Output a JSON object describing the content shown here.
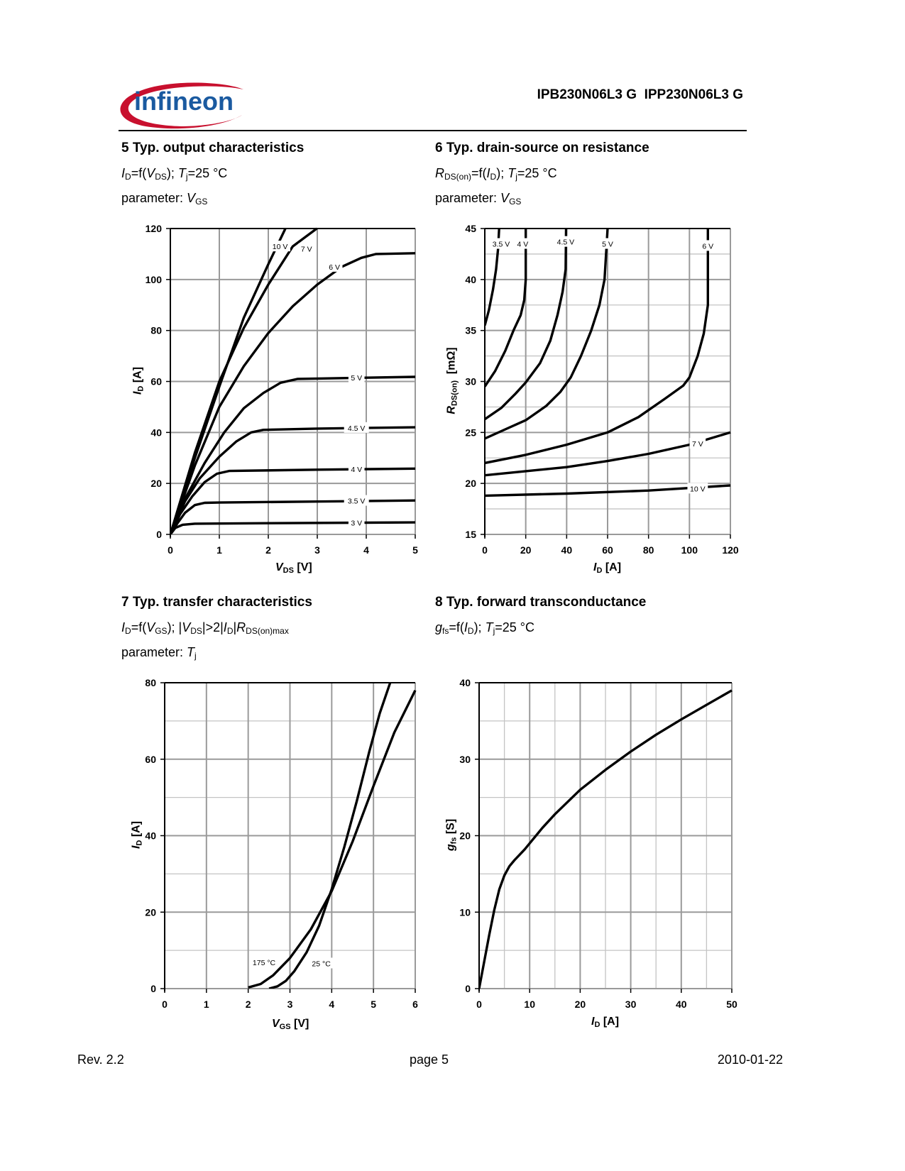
{
  "header": {
    "logo_text": "infineon",
    "part_numbers": "IPB230N06L3 G  IPP230N06L3 G"
  },
  "footer": {
    "revision": "Rev. 2.2",
    "page": "page 5",
    "date": "2010-01-22"
  },
  "colors": {
    "logo_blue": "#1a5aa0",
    "logo_red": "#c8102e",
    "grid": "#9a9a9a",
    "grid_minor": "#c4c4c4",
    "curve": "#000000"
  },
  "sections": [
    {
      "title": "5 Typ. output characteristics",
      "f": {
        "a": "I",
        "as": "D",
        "b": "=f(",
        "c": "V",
        "cs": "DS",
        "d": "); ",
        "e": "T",
        "es": "j",
        "g": "=25 °C"
      },
      "param": {
        "label": "parameter: ",
        "v": "V",
        "vs": "GS"
      }
    },
    {
      "title": "6 Typ. drain-source on resistance",
      "f": {
        "a": "R",
        "as": "DS(on)",
        "b": "=f(",
        "c": "I",
        "cs": "D",
        "d": "); ",
        "e": "T",
        "es": "j",
        "g": "=25 °C"
      },
      "param": {
        "label": "parameter: ",
        "v": "V",
        "vs": "GS"
      }
    },
    {
      "title": "7 Typ. transfer characteristics",
      "f": {
        "a": "I",
        "as": "D",
        "b": "=f(",
        "c": "V",
        "cs": "GS",
        "d": "); |",
        "e": "V",
        "es": "DS",
        "g": "|>2|",
        "h": "I",
        "hs": "D",
        "k": "|",
        "m": "R",
        "ms": "DS(on)max"
      },
      "param": {
        "label": "parameter: ",
        "v": "T",
        "vs": "j"
      }
    },
    {
      "title": "8 Typ. forward transconductance",
      "f": {
        "a": "g",
        "as": "fs",
        "b": "=f(",
        "c": "I",
        "cs": "D",
        "d": "); ",
        "e": "T",
        "es": "j",
        "g": "=25 °C"
      }
    }
  ],
  "chart_data": [
    {
      "type": "line",
      "title": "5 Typ. output characteristics",
      "xlabel": {
        "sym": "V",
        "sub": "DS",
        "unit": " [V]"
      },
      "ylabel": {
        "sym": "I",
        "sub": "D",
        "unit": " [A]"
      },
      "xlim": [
        0,
        5
      ],
      "ylim": [
        0,
        120
      ],
      "grid": true,
      "xticks": [
        "0",
        "1",
        "2",
        "3",
        "4",
        "5"
      ],
      "yticks": [
        "0",
        "20",
        "40",
        "60",
        "80",
        "100",
        "120"
      ],
      "xmajor": 1,
      "ymajor": 20,
      "xminor": null,
      "yminor": null,
      "series": [
        {
          "name": "3 V",
          "label_at": [
            3.8,
            4.6
          ],
          "points": [
            [
              0,
              0
            ],
            [
              0.1,
              2.5
            ],
            [
              0.25,
              3.8
            ],
            [
              0.5,
              4.2
            ],
            [
              2,
              4.4
            ],
            [
              5,
              4.7
            ]
          ]
        },
        {
          "name": "3.5 V",
          "label_at": [
            3.8,
            13.2
          ],
          "points": [
            [
              0,
              0
            ],
            [
              0.15,
              4.5
            ],
            [
              0.3,
              8.5
            ],
            [
              0.5,
              11.5
            ],
            [
              0.7,
              12.4
            ],
            [
              1,
              12.5
            ],
            [
              3,
              12.9
            ],
            [
              5,
              13.3
            ]
          ]
        },
        {
          "name": "4 V",
          "label_at": [
            3.8,
            25.6
          ],
          "points": [
            [
              0,
              0
            ],
            [
              0.2,
              8
            ],
            [
              0.45,
              15
            ],
            [
              0.7,
              20.5
            ],
            [
              0.95,
              23.8
            ],
            [
              1.2,
              24.9
            ],
            [
              3,
              25.4
            ],
            [
              5,
              25.8
            ]
          ]
        },
        {
          "name": "4.5 V",
          "label_at": [
            3.8,
            41.8
          ],
          "points": [
            [
              0,
              0
            ],
            [
              0.3,
              13
            ],
            [
              0.6,
              22
            ],
            [
              1,
              30.5
            ],
            [
              1.35,
              36.5
            ],
            [
              1.65,
              40
            ],
            [
              1.9,
              41
            ],
            [
              3,
              41.5
            ],
            [
              5,
              42
            ]
          ]
        },
        {
          "name": "5 V",
          "label_at": [
            3.8,
            61.5
          ],
          "points": [
            [
              0,
              0
            ],
            [
              0.3,
              14
            ],
            [
              0.7,
              28
            ],
            [
              1.1,
              40
            ],
            [
              1.5,
              49.5
            ],
            [
              1.9,
              55.5
            ],
            [
              2.25,
              59.5
            ],
            [
              2.6,
              61
            ],
            [
              3.5,
              61.3
            ],
            [
              5,
              61.8
            ]
          ]
        },
        {
          "name": "6 V",
          "label_at": [
            3.35,
            105
          ],
          "points": [
            [
              0,
              0
            ],
            [
              0.5,
              27
            ],
            [
              1,
              50
            ],
            [
              1.5,
              66
            ],
            [
              2,
              79
            ],
            [
              2.5,
              89.5
            ],
            [
              3,
              98
            ],
            [
              3.5,
              105
            ],
            [
              3.9,
              108.5
            ],
            [
              4.2,
              110
            ],
            [
              5,
              110.3
            ]
          ]
        },
        {
          "name": "7 V",
          "label_at": [
            2.78,
            112
          ],
          "points": [
            [
              0,
              0
            ],
            [
              0.5,
              32
            ],
            [
              1,
              60
            ],
            [
              1.5,
              81
            ],
            [
              2,
              98
            ],
            [
              2.5,
              113
            ],
            [
              2.99,
              120
            ]
          ]
        },
        {
          "name": "10 V",
          "label_at": [
            2.24,
            113
          ],
          "points": [
            [
              0,
              0
            ],
            [
              0.5,
              30
            ],
            [
              1,
              58
            ],
            [
              1.5,
              85
            ],
            [
              2,
              106
            ],
            [
              2.35,
              120
            ]
          ]
        }
      ]
    },
    {
      "type": "line",
      "title": "6 Typ. drain-source on resistance",
      "xlabel": {
        "sym": "I",
        "sub": "D",
        "unit": " [A]"
      },
      "ylabel": {
        "sym": "R",
        "sub": "DS(on)",
        "unit": "  [mΩ]"
      },
      "xlim": [
        0,
        120
      ],
      "ylim": [
        15,
        45
      ],
      "grid": true,
      "xticks": [
        "0",
        "20",
        "40",
        "60",
        "80",
        "100",
        "120"
      ],
      "yticks": [
        "15",
        "20",
        "25",
        "30",
        "35",
        "40",
        "45"
      ],
      "xmajor": 20,
      "ymajor": 5,
      "xminor": null,
      "yminor": 2.5,
      "series": [
        {
          "name": "3.5 V",
          "label_at": [
            8,
            43.5
          ],
          "points": [
            [
              0,
              35.5
            ],
            [
              2,
              37
            ],
            [
              4,
              39
            ],
            [
              5.5,
              41
            ],
            [
              6.5,
              43
            ],
            [
              7,
              45
            ]
          ]
        },
        {
          "name": "4 V",
          "label_at": [
            18.5,
            43.5
          ],
          "points": [
            [
              0,
              29.5
            ],
            [
              5,
              31
            ],
            [
              10,
              33
            ],
            [
              14,
              35
            ],
            [
              17.5,
              36.5
            ],
            [
              19.3,
              38
            ],
            [
              20,
              40
            ],
            [
              20,
              45
            ]
          ]
        },
        {
          "name": "4.5 V",
          "label_at": [
            39.5,
            43.7
          ],
          "points": [
            [
              0,
              26.3
            ],
            [
              8,
              27.4
            ],
            [
              15,
              28.8
            ],
            [
              20,
              29.9
            ],
            [
              27,
              31.8
            ],
            [
              32,
              34
            ],
            [
              35.5,
              36.5
            ],
            [
              38,
              38.8
            ],
            [
              39.5,
              41
            ],
            [
              39.7,
              45
            ]
          ]
        },
        {
          "name": "5 V",
          "label_at": [
            60,
            43.5
          ],
          "points": [
            [
              0,
              24.4
            ],
            [
              10,
              25.3
            ],
            [
              20,
              26.2
            ],
            [
              30,
              27.6
            ],
            [
              37,
              29
            ],
            [
              42,
              30.4
            ],
            [
              47,
              32.5
            ],
            [
              52,
              35
            ],
            [
              56,
              37.5
            ],
            [
              58.5,
              40
            ],
            [
              60,
              45
            ]
          ]
        },
        {
          "name": "6 V",
          "label_at": [
            109,
            43.3
          ],
          "points": [
            [
              0,
              22
            ],
            [
              20,
              22.8
            ],
            [
              40,
              23.8
            ],
            [
              60,
              25
            ],
            [
              75,
              26.5
            ],
            [
              88,
              28.3
            ],
            [
              97,
              29.6
            ],
            [
              100,
              30.4
            ],
            [
              104,
              32.5
            ],
            [
              107,
              34.7
            ],
            [
              109,
              37.5
            ],
            [
              109,
              40
            ],
            [
              109,
              45
            ]
          ]
        },
        {
          "name": "7 V",
          "label_at": [
            104,
            23.9
          ],
          "points": [
            [
              0,
              20.8
            ],
            [
              20,
              21.2
            ],
            [
              40,
              21.6
            ],
            [
              60,
              22.2
            ],
            [
              80,
              22.9
            ],
            [
              100,
              23.8
            ],
            [
              120,
              25
            ]
          ]
        },
        {
          "name": "10 V",
          "label_at": [
            104,
            19.5
          ],
          "points": [
            [
              0,
              18.8
            ],
            [
              40,
              19
            ],
            [
              80,
              19.3
            ],
            [
              120,
              19.8
            ]
          ]
        }
      ]
    },
    {
      "type": "line",
      "title": "7 Typ. transfer characteristics",
      "xlabel": {
        "sym": "V",
        "sub": "GS",
        "unit": " [V]"
      },
      "ylabel": {
        "sym": "I",
        "sub": "D",
        "unit": " [A]"
      },
      "xlim": [
        0,
        6
      ],
      "ylim": [
        0,
        80
      ],
      "grid": true,
      "xticks": [
        "0",
        "1",
        "2",
        "3",
        "4",
        "5",
        "6"
      ],
      "yticks": [
        "0",
        "20",
        "40",
        "60",
        "80"
      ],
      "xmajor": 1,
      "ymajor": 20,
      "xminor": null,
      "yminor": 10,
      "series": [
        {
          "name": "25 °C",
          "label_at": [
            3.75,
            6.6
          ],
          "points": [
            [
              2.5,
              0
            ],
            [
              2.7,
              0.6
            ],
            [
              2.9,
              2
            ],
            [
              3.1,
              4.5
            ],
            [
              3.4,
              9.5
            ],
            [
              3.7,
              16.5
            ],
            [
              4,
              26
            ],
            [
              4.3,
              37
            ],
            [
              4.6,
              49
            ],
            [
              4.9,
              62
            ],
            [
              5.15,
              72
            ],
            [
              5.4,
              80
            ]
          ]
        },
        {
          "name": "175 °C",
          "label_at": [
            2.38,
            6.9
          ],
          "points": [
            [
              2,
              0.3
            ],
            [
              2.3,
              1.2
            ],
            [
              2.6,
              3.5
            ],
            [
              3,
              8
            ],
            [
              3.5,
              15.5
            ],
            [
              4,
              25.5
            ],
            [
              4.5,
              38.5
            ],
            [
              5,
              53
            ],
            [
              5.5,
              67
            ],
            [
              6,
              78
            ]
          ]
        }
      ]
    },
    {
      "type": "line",
      "title": "8 Typ. forward transconductance",
      "xlabel": {
        "sym": "I",
        "sub": "D",
        "unit": " [A]"
      },
      "ylabel": {
        "sym": "g",
        "sub": "fs",
        "unit": " [S]"
      },
      "xlim": [
        0,
        50
      ],
      "ylim": [
        0,
        40
      ],
      "grid": true,
      "xticks": [
        "0",
        "10",
        "20",
        "30",
        "40",
        "50"
      ],
      "yticks": [
        "0",
        "10",
        "20",
        "30",
        "40"
      ],
      "xmajor": 10,
      "ymajor": 10,
      "xminor": 5,
      "yminor": 5,
      "series": [
        {
          "name": "gfs",
          "points": [
            [
              0,
              0
            ],
            [
              1,
              3.5
            ],
            [
              2,
              7
            ],
            [
              3,
              10.3
            ],
            [
              4,
              13
            ],
            [
              5,
              14.8
            ],
            [
              6,
              16
            ],
            [
              7,
              16.8
            ],
            [
              8,
              17.5
            ],
            [
              9,
              18.2
            ],
            [
              10,
              19
            ],
            [
              12.5,
              21
            ],
            [
              15,
              22.8
            ],
            [
              20,
              26
            ],
            [
              25,
              28.6
            ],
            [
              30,
              31
            ],
            [
              35,
              33.2
            ],
            [
              40,
              35.2
            ],
            [
              45,
              37.1
            ],
            [
              50,
              39
            ]
          ]
        }
      ]
    }
  ]
}
